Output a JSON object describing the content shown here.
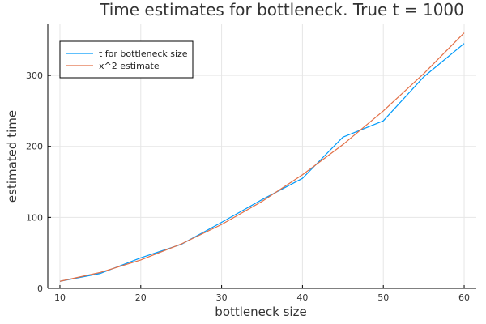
{
  "chart_data": {
    "type": "line",
    "title": "Time estimates for bottleneck. True t = 1000",
    "xlabel": "bottleneck size",
    "ylabel": "estimated time",
    "xlim": [
      8.5,
      61.5
    ],
    "ylim": [
      0,
      372
    ],
    "xticks": [
      10,
      20,
      30,
      40,
      50,
      60
    ],
    "yticks": [
      0,
      100,
      200,
      300
    ],
    "grid": true,
    "legend_position": "top-left",
    "x": [
      10,
      15,
      20,
      25,
      30,
      35,
      40,
      45,
      50,
      55,
      60
    ],
    "series": [
      {
        "name": "t for bottleneck size",
        "color": "#009af9",
        "values": [
          10,
          21,
          43,
          62,
          93,
          125,
          155,
          213,
          236,
          298,
          345
        ]
      },
      {
        "name": "x^2 estimate",
        "color": "#e26f46",
        "values": [
          10,
          22.5,
          40,
          62.5,
          90,
          122.5,
          160,
          202.5,
          250,
          302.5,
          360
        ]
      }
    ]
  }
}
